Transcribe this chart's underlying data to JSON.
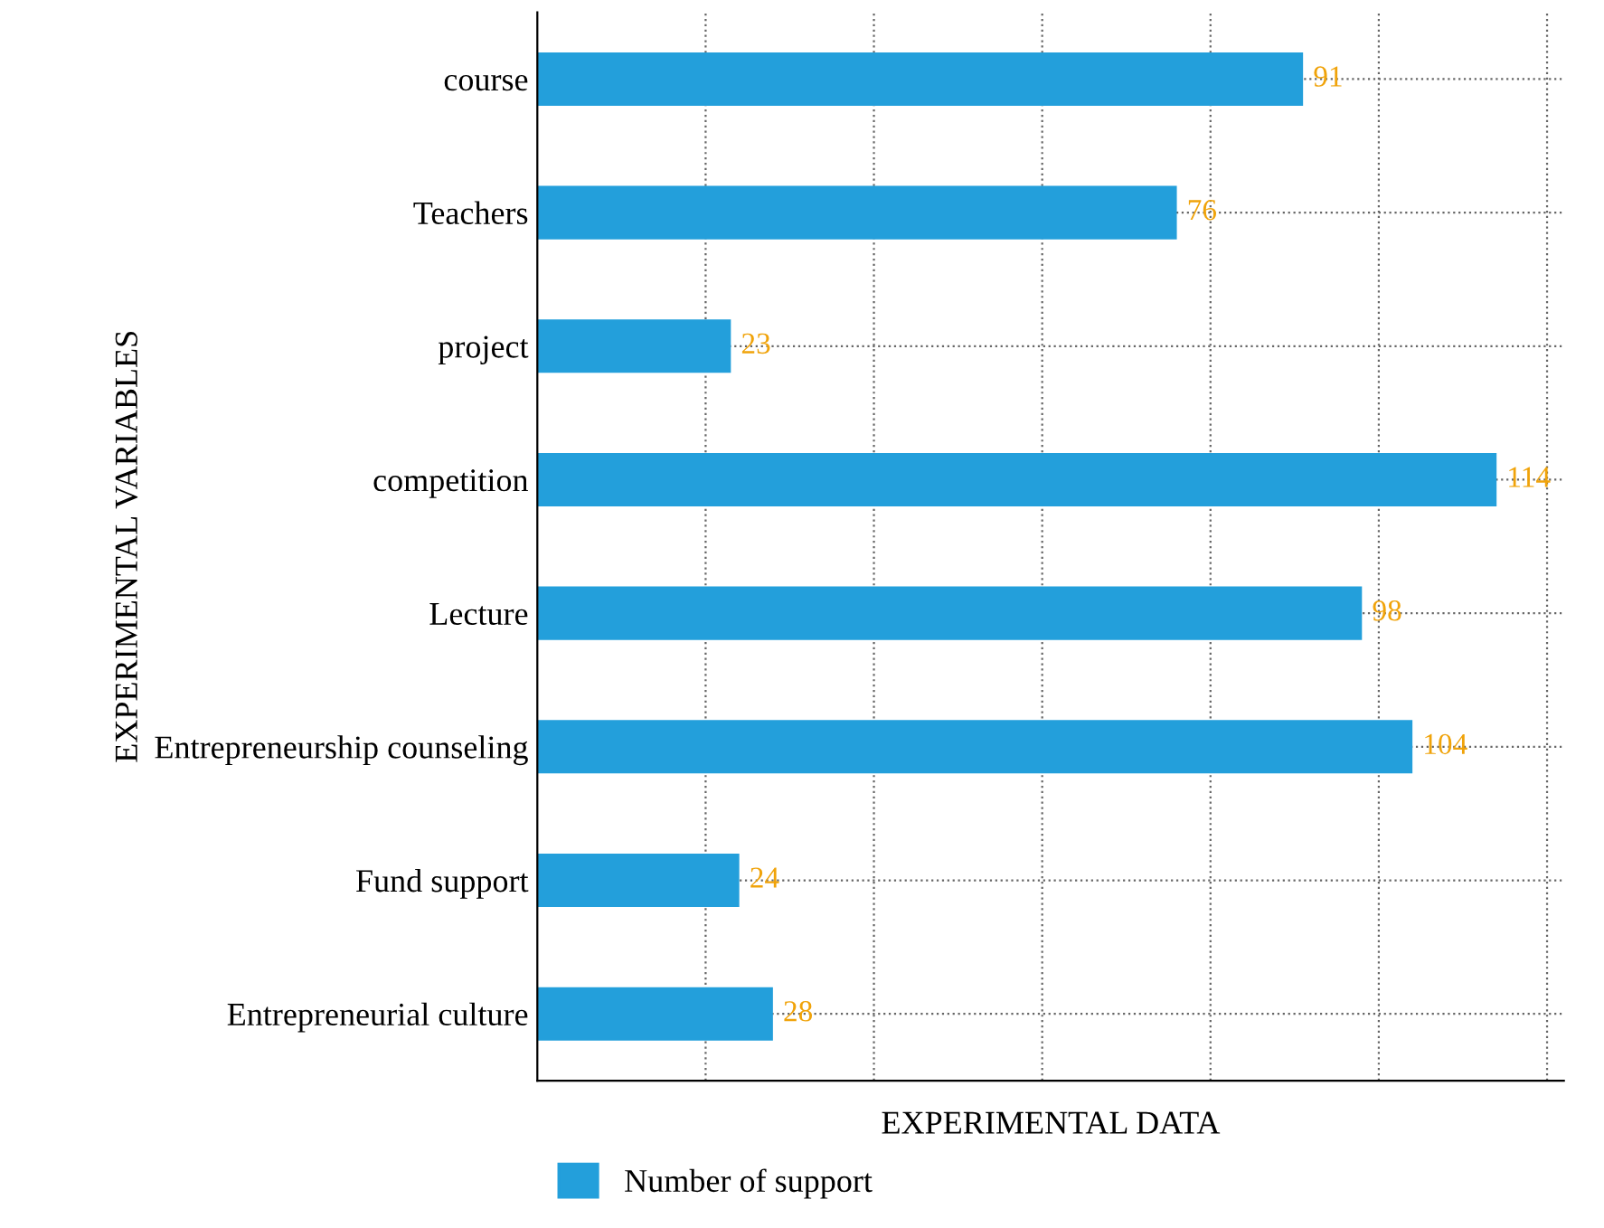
{
  "chart_data": {
    "type": "bar",
    "orientation": "horizontal",
    "xlabel": "EXPERIMENTAL DATA",
    "ylabel": "EXPERIMENTAL VARIABLES",
    "categories": [
      "course",
      "Teachers",
      "project",
      "competition",
      "Lecture",
      "Entrepreneurship counseling",
      "Fund support",
      "Entrepreneurial culture"
    ],
    "series": [
      {
        "name": "Number of support",
        "color": "#239fdb",
        "values": [
          91,
          76,
          23,
          114,
          98,
          104,
          24,
          28
        ]
      }
    ],
    "data_labels": true,
    "xlim": [
      0,
      122
    ],
    "xticks": [
      {
        "value": 20,
        "label": null
      },
      {
        "value": 40,
        "label": null
      },
      {
        "value": 60,
        "label": null
      },
      {
        "value": 80,
        "label": null
      },
      {
        "value": 100,
        "label": null
      },
      {
        "value": 120,
        "label": null
      }
    ],
    "tick_labels": "y",
    "grid": true,
    "line_style": "dotted",
    "legend": "bottom"
  }
}
